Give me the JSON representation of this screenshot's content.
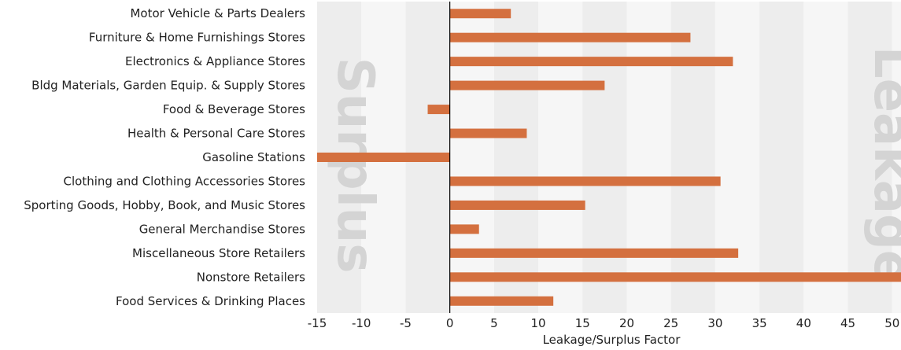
{
  "chart_data": {
    "type": "bar",
    "orientation": "horizontal",
    "categories": [
      "Motor Vehicle & Parts Dealers",
      "Furniture & Home Furnishings Stores",
      "Electronics & Appliance Stores",
      "Bldg Materials, Garden Equip. & Supply Stores",
      "Food & Beverage Stores",
      "Health & Personal Care Stores",
      "Gasoline Stations",
      "Clothing and Clothing Accessories Stores",
      "Sporting Goods, Hobby, Book, and Music Stores",
      "General Merchandise Stores",
      "Miscellaneous Store Retailers",
      "Nonstore Retailers",
      "Food Services & Drinking Places"
    ],
    "values": [
      6.9,
      27.2,
      32.0,
      17.5,
      -2.5,
      8.7,
      -15.0,
      30.6,
      15.3,
      3.3,
      32.6,
      51.2,
      11.7
    ],
    "xlabel": "Leakage/Surplus Factor",
    "ylabel": "",
    "xlim": [
      -15,
      51
    ],
    "xticks": [
      -15,
      -10,
      -5,
      0,
      5,
      10,
      15,
      20,
      25,
      30,
      35,
      40,
      45,
      50
    ],
    "bar_color": "#d4703f",
    "background_bands": [
      "#ededed",
      "#f6f6f6"
    ],
    "watermarks": {
      "left": "Surplus",
      "right": "Leakage"
    },
    "grid": false,
    "legend": "none"
  }
}
